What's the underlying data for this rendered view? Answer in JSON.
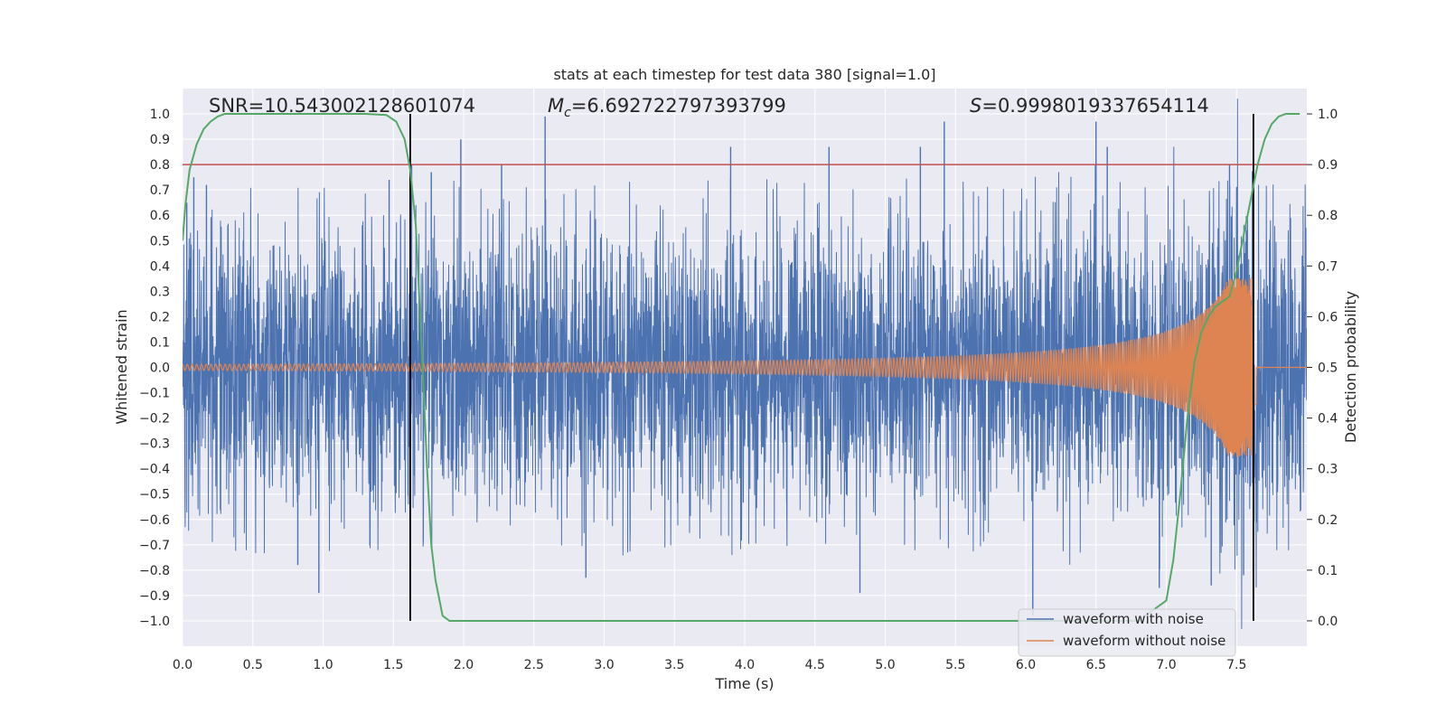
{
  "chart_data": {
    "type": "line",
    "title": "stats at each timestep for test data 380 [signal=1.0]",
    "xlabel": "Time (s)",
    "ylabel": "Whitened strain",
    "y2label": "Detection probability",
    "xlim": [
      0.0,
      8.0
    ],
    "ylim": [
      -1.1,
      1.1
    ],
    "y2lim": [
      -0.05,
      1.05
    ],
    "grid": true,
    "xticks": [
      "0.0",
      "0.5",
      "1.0",
      "1.5",
      "2.0",
      "2.5",
      "3.0",
      "3.5",
      "4.0",
      "4.5",
      "5.0",
      "5.5",
      "6.0",
      "6.5",
      "7.0",
      "7.5"
    ],
    "xtick_values": [
      0.0,
      0.5,
      1.0,
      1.5,
      2.0,
      2.5,
      3.0,
      3.5,
      4.0,
      4.5,
      5.0,
      5.5,
      6.0,
      6.5,
      7.0,
      7.5
    ],
    "yticks": [
      "1.0",
      "0.9",
      "0.8",
      "0.7",
      "0.6",
      "0.5",
      "0.4",
      "0.3",
      "0.2",
      "0.1",
      "0.0",
      "−0.1",
      "−0.2",
      "−0.3",
      "−0.4",
      "−0.5",
      "−0.6",
      "−0.7",
      "−0.8",
      "−0.9",
      "−1.0"
    ],
    "ytick_values": [
      1.0,
      0.9,
      0.8,
      0.7,
      0.6,
      0.5,
      0.4,
      0.3,
      0.2,
      0.1,
      0.0,
      -0.1,
      -0.2,
      -0.3,
      -0.4,
      -0.5,
      -0.6,
      -0.7,
      -0.8,
      -0.9,
      -1.0
    ],
    "y2ticks": [
      "1.0",
      "0.9",
      "0.8",
      "0.7",
      "0.6",
      "0.5",
      "0.4",
      "0.3",
      "0.2",
      "0.1",
      "0.0"
    ],
    "y2tick_values": [
      1.0,
      0.9,
      0.8,
      0.7,
      0.6,
      0.5,
      0.4,
      0.3,
      0.2,
      0.1,
      0.0
    ],
    "annotations": {
      "snr": "SNR=10.543002128601074",
      "mc_symbol": "M",
      "mc_sub": "c",
      "mc_value": "=6.692722797393799",
      "s_symbol": "S",
      "s_value": "=0.9998019337654114"
    },
    "threshold": {
      "value": 0.9,
      "axis": "right",
      "color": "#c44e52"
    },
    "vertical_lines": [
      1.62,
      7.62
    ],
    "legend": {
      "placement": "lower-right",
      "entries": [
        {
          "label": "waveform with noise",
          "color": "#4c72b0"
        },
        {
          "label": "waveform without noise",
          "color": "#dd8452"
        }
      ]
    },
    "series": [
      {
        "name": "waveform with noise",
        "axis": "left",
        "color": "#4c72b0",
        "description": "whitened noisy strain, 0-8 s",
        "envelope_p95": 0.55,
        "peaks": [
          [
            0.03,
            0.65
          ],
          [
            0.08,
            0.75
          ],
          [
            0.17,
            0.72
          ],
          [
            0.82,
            -0.78
          ],
          [
            0.97,
            -0.89
          ],
          [
            1.47,
            0.74
          ],
          [
            1.63,
            0.8
          ],
          [
            1.77,
            0.77
          ],
          [
            1.98,
            0.9
          ],
          [
            2.27,
            0.8
          ],
          [
            2.58,
            0.99
          ],
          [
            2.87,
            -0.83
          ],
          [
            3.9,
            0.87
          ],
          [
            4.6,
            0.87
          ],
          [
            4.82,
            -0.89
          ],
          [
            5.25,
            0.87
          ],
          [
            5.42,
            0.97
          ],
          [
            6.05,
            -0.98
          ],
          [
            6.5,
            0.97
          ],
          [
            6.58,
            0.87
          ],
          [
            6.95,
            -0.87
          ],
          [
            7.32,
            -0.86
          ],
          [
            7.45,
            0.8
          ],
          [
            7.55,
            -0.82
          ],
          [
            7.62,
            0.78
          ]
        ]
      },
      {
        "name": "waveform without noise",
        "axis": "left",
        "color": "#dd8452",
        "description": "chirp template, merger near 7.62 s",
        "amp_start": 0.012,
        "amp_end": 0.35,
        "merger_t": 7.62,
        "cycles_approx": 360
      },
      {
        "name": "detection probability",
        "axis": "right",
        "color": "#55a868",
        "x": [
          0.0,
          0.02,
          0.05,
          0.1,
          0.15,
          0.2,
          0.25,
          0.3,
          0.4,
          0.6,
          1.0,
          1.3,
          1.45,
          1.52,
          1.58,
          1.62,
          1.66,
          1.7,
          1.74,
          1.77,
          1.8,
          1.85,
          1.9,
          2.0,
          4.0,
          6.0,
          6.8,
          7.0,
          7.05,
          7.1,
          7.15,
          7.2,
          7.25,
          7.3,
          7.35,
          7.4,
          7.45,
          7.5,
          7.55,
          7.6,
          7.65,
          7.7,
          7.75,
          7.8,
          7.85,
          7.9,
          7.95
        ],
        "values": [
          0.75,
          0.82,
          0.89,
          0.94,
          0.97,
          0.985,
          0.995,
          1.0,
          1.0,
          1.0,
          1.0,
          1.0,
          0.998,
          0.985,
          0.95,
          0.89,
          0.78,
          0.55,
          0.3,
          0.15,
          0.08,
          0.01,
          0.0,
          0.0,
          0.0,
          0.0,
          0.0,
          0.04,
          0.12,
          0.25,
          0.4,
          0.51,
          0.57,
          0.6,
          0.62,
          0.63,
          0.64,
          0.69,
          0.76,
          0.83,
          0.9,
          0.95,
          0.98,
          0.995,
          1.0,
          1.0,
          1.0
        ]
      }
    ]
  }
}
